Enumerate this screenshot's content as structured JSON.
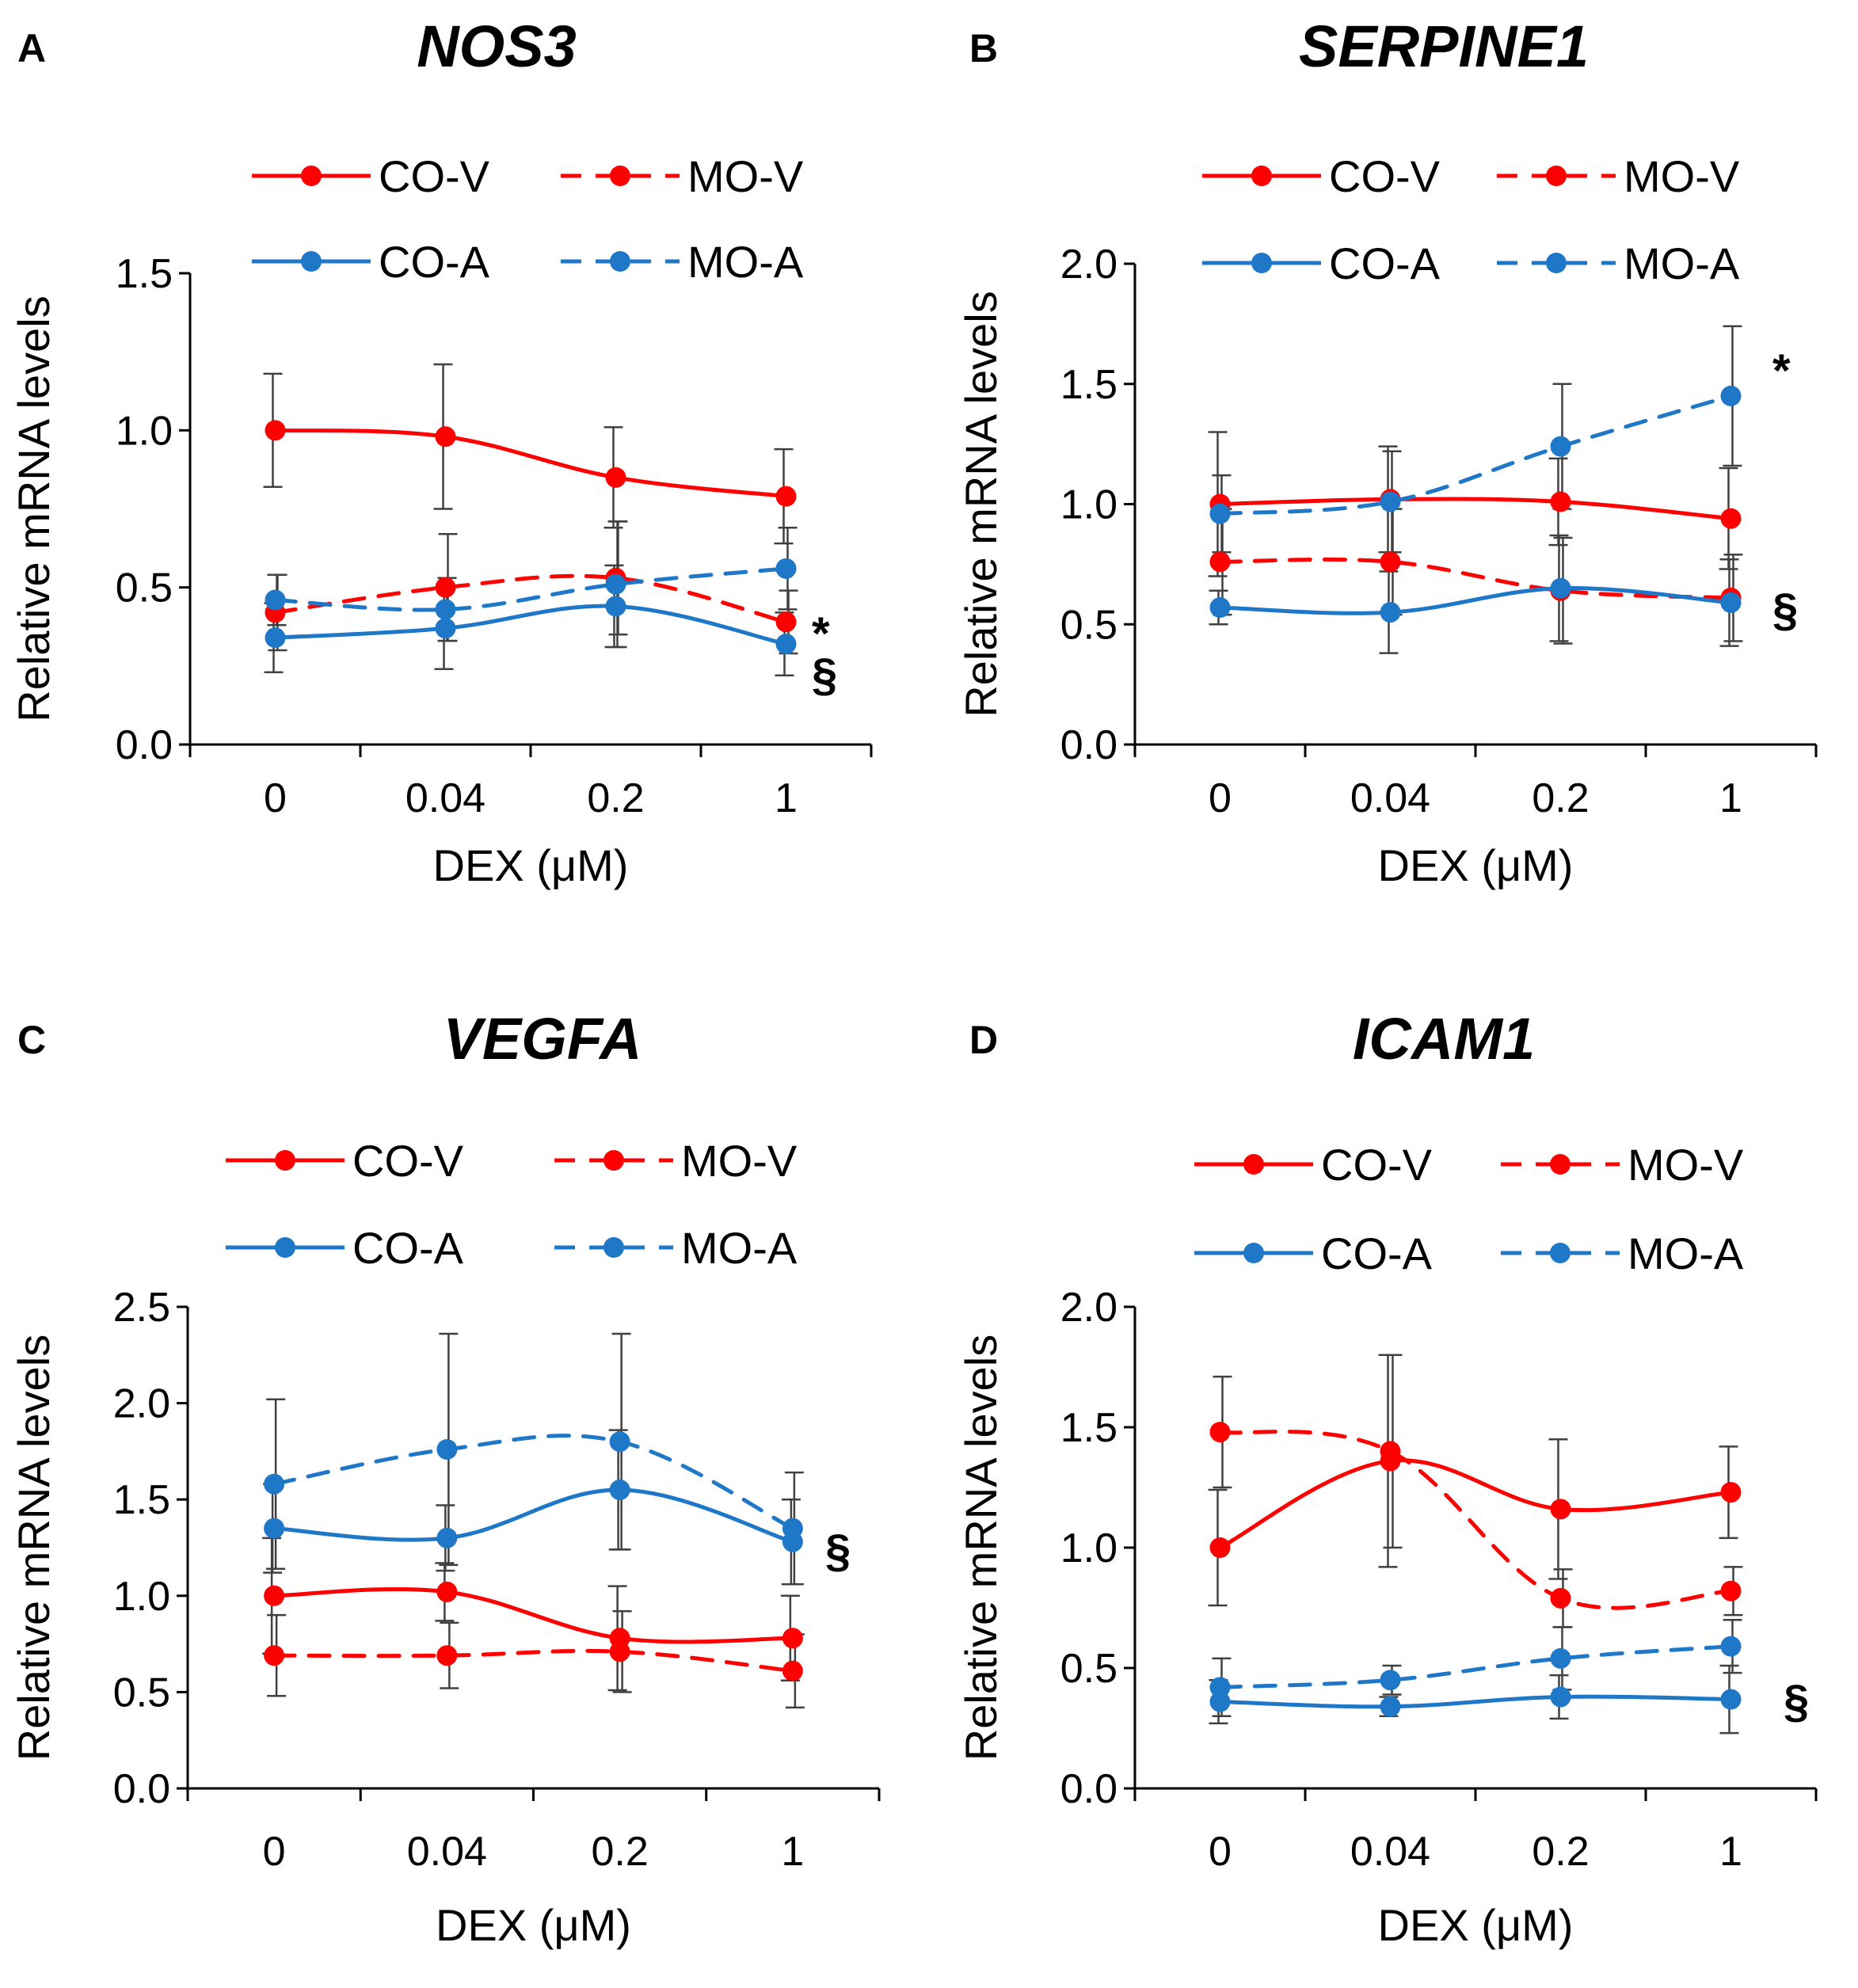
{
  "figure": {
    "x_label": "DEX (μM)",
    "y_label": "Relative mRNA levels",
    "series_styles": {
      "CO-V": {
        "color": "#ff0000",
        "dash": false
      },
      "MO-V": {
        "color": "#ff0000",
        "dash": true
      },
      "CO-A": {
        "color": "#1f77c8",
        "dash": false
      },
      "MO-A": {
        "color": "#1f77c8",
        "dash": true
      }
    },
    "error_bar_color": "#404040"
  },
  "chart_data": [
    {
      "panel": "A",
      "title": "NOS3",
      "type": "line",
      "categories": [
        "0",
        "0.04",
        "0.2",
        "1"
      ],
      "ylim": [
        0,
        1.5
      ],
      "yticks": [
        "0.0",
        "0.5",
        "1.0",
        "1.5"
      ],
      "xlabel": "DEX (μM)",
      "ylabel": "Relative mRNA levels",
      "legend": [
        "CO-V",
        "MO-V",
        "CO-A",
        "MO-A"
      ],
      "series": [
        {
          "name": "CO-V",
          "values": [
            1.0,
            0.98,
            0.85,
            0.79
          ],
          "errors": [
            0.18,
            0.23,
            0.16,
            0.15
          ]
        },
        {
          "name": "MO-V",
          "values": [
            0.42,
            0.5,
            0.53,
            0.39
          ],
          "errors": [
            0.12,
            0.17,
            0.18,
            0.1
          ]
        },
        {
          "name": "CO-A",
          "values": [
            0.34,
            0.37,
            0.44,
            0.32
          ],
          "errors": [
            0.11,
            0.13,
            0.13,
            0.1
          ]
        },
        {
          "name": "MO-A",
          "values": [
            0.46,
            0.43,
            0.51,
            0.56
          ],
          "errors": [
            0.08,
            0.1,
            0.2,
            0.13
          ]
        }
      ],
      "annotations": [
        "*",
        "§"
      ]
    },
    {
      "panel": "B",
      "title": "SERPINE1",
      "type": "line",
      "categories": [
        "0",
        "0.04",
        "0.2",
        "1"
      ],
      "ylim": [
        0,
        2.0
      ],
      "yticks": [
        "0.0",
        "0.5",
        "1.0",
        "1.5",
        "2.0"
      ],
      "xlabel": "DEX (μM)",
      "ylabel": "Relative mRNA levels",
      "legend": [
        "CO-V",
        "MO-V",
        "CO-A",
        "MO-A"
      ],
      "series": [
        {
          "name": "CO-V",
          "values": [
            1.0,
            1.02,
            1.01,
            0.94
          ],
          "errors": [
            0.3,
            0.22,
            0.18,
            0.21
          ]
        },
        {
          "name": "MO-V",
          "values": [
            0.76,
            0.76,
            0.64,
            0.61
          ],
          "errors": [
            0.22,
            0.22,
            0.22,
            0.18
          ]
        },
        {
          "name": "CO-A",
          "values": [
            0.57,
            0.55,
            0.65,
            0.59
          ],
          "errors": [
            0.07,
            0.17,
            0.22,
            0.18
          ]
        },
        {
          "name": "MO-A",
          "values": [
            0.96,
            1.01,
            1.24,
            1.45
          ],
          "errors": [
            0.16,
            0.21,
            0.26,
            0.29
          ]
        }
      ],
      "annotations": [
        "*",
        "§"
      ]
    },
    {
      "panel": "C",
      "title": "VEGFA",
      "type": "line",
      "categories": [
        "0",
        "0.04",
        "0.2",
        "1"
      ],
      "ylim": [
        0,
        2.5
      ],
      "yticks": [
        "0.0",
        "0.5",
        "1.0",
        "1.5",
        "2.0",
        "2.5"
      ],
      "xlabel": "DEX (μM)",
      "ylabel": "Relative mRNA levels",
      "legend": [
        "CO-V",
        "MO-V",
        "CO-A",
        "MO-A"
      ],
      "series": [
        {
          "name": "CO-V",
          "values": [
            1.0,
            1.02,
            0.78,
            0.78
          ],
          "errors": [
            0.3,
            0.15,
            0.27,
            0.22
          ]
        },
        {
          "name": "MO-V",
          "values": [
            0.69,
            0.69,
            0.71,
            0.61
          ],
          "errors": [
            0.21,
            0.17,
            0.21,
            0.19
          ]
        },
        {
          "name": "CO-A",
          "values": [
            1.35,
            1.3,
            1.55,
            1.28
          ],
          "errors": [
            0.23,
            0.17,
            0.31,
            0.22
          ]
        },
        {
          "name": "MO-A",
          "values": [
            1.58,
            1.76,
            1.8,
            1.35
          ],
          "errors": [
            0.44,
            0.6,
            0.56,
            0.29
          ]
        }
      ],
      "annotations": [
        "§"
      ]
    },
    {
      "panel": "D",
      "title": "ICAM1",
      "type": "line",
      "categories": [
        "0",
        "0.04",
        "0.2",
        "1"
      ],
      "ylim": [
        0,
        2.0
      ],
      "yticks": [
        "0.0",
        "0.5",
        "1.0",
        "1.5",
        "2.0"
      ],
      "xlabel": "DEX (μM)",
      "ylabel": "Relative mRNA levels",
      "legend": [
        "CO-V",
        "MO-V",
        "CO-A",
        "MO-A"
      ],
      "series": [
        {
          "name": "CO-V",
          "values": [
            1.0,
            1.36,
            1.16,
            1.23
          ],
          "errors": [
            0.24,
            0.44,
            0.29,
            0.19
          ]
        },
        {
          "name": "MO-V",
          "values": [
            1.48,
            1.4,
            0.79,
            0.82
          ],
          "errors": [
            0.23,
            0.4,
            0.12,
            0.1
          ]
        },
        {
          "name": "CO-A",
          "values": [
            0.36,
            0.34,
            0.38,
            0.37
          ],
          "errors": [
            0.09,
            0.04,
            0.09,
            0.14
          ]
        },
        {
          "name": "MO-A",
          "values": [
            0.42,
            0.45,
            0.54,
            0.59
          ],
          "errors": [
            0.12,
            0.06,
            0.13,
            0.11
          ]
        }
      ],
      "annotations": [
        "§"
      ]
    }
  ]
}
